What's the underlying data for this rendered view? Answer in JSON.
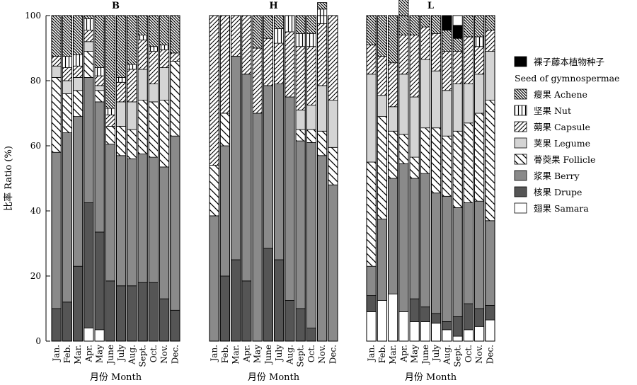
{
  "chart_data": {
    "type": "bar",
    "stacked": true,
    "ylabel": "比率 Ratio (%)",
    "xlabel": "月份 Month",
    "ylim": [
      0,
      100
    ],
    "yticks": [
      "0",
      "20",
      "40",
      "60",
      "80",
      "100"
    ],
    "categories": [
      "Jan.",
      "Feb.",
      "Mar.",
      "Apr.",
      "May",
      "June",
      "July",
      "Aug.",
      "Sept.",
      "Oct.",
      "Nov.",
      "Dec."
    ],
    "legend": {
      "position": "right",
      "entries": [
        {
          "key": "gymno",
          "label": "裸子藤本植物种子",
          "label2": "Seed of gymnospermae",
          "fill": "#000000",
          "pattern": "solid"
        },
        {
          "key": "achene",
          "label": "瘦果 Achene",
          "pattern": "hatch-back"
        },
        {
          "key": "nut",
          "label": "坚果 Nut",
          "pattern": "vertical"
        },
        {
          "key": "capsule",
          "label": "蒴果 Capsule",
          "pattern": "hatch-fwd-dense"
        },
        {
          "key": "legume",
          "label": "荚果 Legume",
          "fill": "#d4d4d4",
          "pattern": "solid"
        },
        {
          "key": "follicle",
          "label": "蓇葖果 Follicle",
          "pattern": "hatch-back-wide"
        },
        {
          "key": "berry",
          "label": "浆果 Berry",
          "fill": "#8a8a8a",
          "pattern": "solid"
        },
        {
          "key": "drupe",
          "label": "核果 Drupe",
          "fill": "#555555",
          "pattern": "solid"
        },
        {
          "key": "samara",
          "label": "翅果 Samara",
          "fill": "#ffffff",
          "pattern": "solid"
        }
      ]
    },
    "panels": [
      {
        "title": "B",
        "segments": {
          "samara": [
            0,
            0,
            0,
            4,
            3.5,
            0,
            0,
            0,
            0,
            0,
            0,
            0
          ],
          "drupe": [
            10,
            12,
            23,
            38.5,
            30,
            18.5,
            17,
            17,
            18,
            18,
            13,
            9.5
          ],
          "berry": [
            48,
            52,
            46,
            38.5,
            40,
            42,
            40,
            39,
            39.5,
            38.5,
            40.5,
            53.5
          ],
          "follicle": [
            23,
            12,
            8,
            8,
            3.5,
            5.5,
            9,
            9,
            16.5,
            17,
            20.5,
            23
          ],
          "legume": [
            3.5,
            4,
            4,
            3,
            1.5,
            0,
            7.5,
            8.5,
            9.5,
            5.5,
            10,
            0
          ],
          "capsule": [
            3,
            4,
            3.5,
            3.5,
            3,
            3.5,
            6,
            10,
            9,
            10,
            5.5,
            2.5
          ],
          "nut": [
            0,
            3.5,
            3.5,
            3.5,
            2.5,
            2,
            1.5,
            1.5,
            1.5,
            1.5,
            1.5,
            0
          ],
          "achene": [
            12.5,
            12.5,
            12,
            1,
            16,
            28.5,
            19,
            15,
            6,
            9.5,
            9,
            11.5
          ],
          "gymno": [
            0,
            0,
            0,
            0,
            0,
            0,
            0,
            0,
            0,
            0,
            0,
            0
          ]
        }
      },
      {
        "title": "H",
        "segments": {
          "samara": [
            0,
            0,
            0,
            0,
            0,
            0,
            0,
            0,
            0,
            0,
            0,
            0
          ],
          "drupe": [
            0,
            20,
            25,
            18.5,
            0,
            28.5,
            25,
            12.5,
            10,
            4,
            0,
            0
          ],
          "berry": [
            38.5,
            40,
            62.5,
            63.5,
            70,
            50,
            54,
            62.5,
            51.5,
            57,
            57,
            48
          ],
          "follicle": [
            15.5,
            10,
            0,
            0,
            0,
            0,
            0,
            0,
            3.5,
            4,
            7.5,
            11.5
          ],
          "legume": [
            0,
            0,
            0,
            0,
            0,
            0,
            0,
            0,
            6,
            7.5,
            14,
            14.5
          ],
          "capsule": [
            46,
            30,
            12.5,
            18,
            20,
            14.5,
            12.5,
            20,
            19.5,
            18,
            19,
            26
          ],
          "nut": [
            0,
            0,
            0,
            0,
            0,
            0,
            4.5,
            5,
            4,
            4,
            4.5,
            0
          ],
          "achene": [
            0,
            0,
            0,
            0,
            10,
            7,
            4,
            0,
            5.5,
            5.5,
            2,
            0
          ],
          "gymno": [
            0,
            0,
            0,
            0,
            0,
            0,
            0,
            0,
            0,
            0,
            0,
            0
          ]
        }
      },
      {
        "title": "L",
        "segments": {
          "samara": [
            9,
            12.5,
            14.5,
            9,
            6,
            6,
            5.5,
            3.5,
            1.5,
            3.5,
            4.5,
            6.5
          ],
          "drupe": [
            5,
            0,
            0,
            0,
            7,
            4.5,
            3,
            2.5,
            6,
            8,
            5.5,
            4.5
          ],
          "berry": [
            9,
            25,
            35.5,
            45.5,
            37,
            41,
            37,
            38.5,
            33.5,
            31,
            33,
            26
          ],
          "follicle": [
            32,
            31.5,
            14.5,
            9,
            6.5,
            14,
            20,
            18.5,
            23.5,
            24.5,
            27,
            37
          ],
          "legume": [
            27,
            6.5,
            7.5,
            18.5,
            18.5,
            21,
            17.5,
            14,
            14.5,
            12,
            12,
            15
          ],
          "capsule": [
            9,
            12,
            13.5,
            12,
            19,
            10,
            11.5,
            12,
            10,
            14.5,
            8.5,
            6.5
          ],
          "nut": [
            0,
            0,
            0,
            0,
            0,
            0,
            0,
            0,
            0,
            0,
            3,
            0
          ],
          "achene": [
            9,
            12.5,
            14.5,
            18,
            6,
            3.5,
            5.5,
            6.5,
            4,
            6.5,
            6.5,
            4.5
          ],
          "gymno": [
            0,
            0,
            0,
            0,
            0,
            0,
            0,
            4.5,
            4,
            0,
            0,
            0
          ]
        }
      }
    ]
  }
}
